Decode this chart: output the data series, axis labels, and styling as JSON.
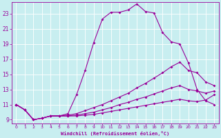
{
  "xlabel": "Windchill (Refroidissement éolien,°C)",
  "bg_color": "#c8eef0",
  "line_color": "#990099",
  "grid_color": "#ffffff",
  "xlim": [
    -0.5,
    23.5
  ],
  "ylim": [
    8.5,
    24.5
  ],
  "xticks": [
    0,
    1,
    2,
    3,
    4,
    5,
    6,
    7,
    8,
    9,
    10,
    11,
    12,
    13,
    14,
    15,
    16,
    17,
    18,
    19,
    20,
    21,
    22,
    23
  ],
  "yticks": [
    9,
    11,
    13,
    15,
    17,
    19,
    21,
    23
  ],
  "line1_x": [
    0,
    1,
    2,
    3,
    4,
    5,
    6,
    7,
    8,
    9,
    10,
    11,
    12,
    13,
    14,
    15,
    16,
    17,
    18,
    19,
    20,
    21,
    22,
    23
  ],
  "line1_y": [
    11.0,
    10.3,
    9.0,
    9.2,
    9.5,
    9.5,
    9.8,
    12.3,
    15.5,
    19.2,
    22.3,
    23.2,
    23.2,
    23.5,
    24.3,
    23.3,
    23.1,
    20.5,
    19.3,
    null,
    null,
    null,
    null,
    null
  ],
  "line1_x_seg2": [
    18,
    19,
    20,
    21,
    22,
    23
  ],
  "line1_y_seg2": [
    19.3,
    null,
    null,
    null,
    null,
    null
  ],
  "main_line_x": [
    0,
    1,
    2,
    3,
    4,
    5,
    6,
    7,
    8,
    9,
    10,
    11,
    12,
    13,
    14,
    15,
    16,
    17,
    18,
    19,
    20,
    21,
    22,
    23
  ],
  "main_line_y": [
    11.0,
    10.3,
    9.0,
    9.2,
    9.5,
    9.5,
    9.8,
    12.3,
    15.5,
    19.2,
    22.3,
    23.2,
    23.2,
    23.5,
    24.3,
    23.3,
    23.1,
    20.5,
    19.3,
    19.0,
    16.5,
    13.0,
    11.5,
    11.0
  ],
  "line2_x": [
    0,
    1,
    2,
    3,
    4,
    5,
    6,
    7,
    8,
    9,
    10,
    11,
    12,
    13,
    14,
    15,
    16,
    17,
    18,
    19,
    20,
    21,
    22,
    23
  ],
  "line2_y": [
    11.0,
    10.3,
    9.0,
    9.2,
    9.5,
    9.5,
    9.6,
    9.8,
    10.2,
    10.6,
    11.0,
    11.5,
    12.0,
    12.5,
    13.2,
    13.8,
    14.5,
    15.2,
    16.0,
    16.6,
    15.5,
    15.2,
    14.0,
    13.5
  ],
  "line3_x": [
    0,
    1,
    2,
    3,
    4,
    5,
    6,
    7,
    8,
    9,
    10,
    11,
    12,
    13,
    14,
    15,
    16,
    17,
    18,
    19,
    20,
    21,
    22,
    23
  ],
  "line3_y": [
    11.0,
    10.3,
    9.0,
    9.2,
    9.5,
    9.5,
    9.5,
    9.6,
    9.8,
    10.0,
    10.3,
    10.6,
    11.0,
    11.3,
    11.7,
    12.0,
    12.4,
    12.8,
    13.2,
    13.5,
    13.0,
    12.8,
    12.5,
    12.8
  ],
  "line4_x": [
    0,
    1,
    2,
    3,
    4,
    5,
    6,
    7,
    8,
    9,
    10,
    11,
    12,
    13,
    14,
    15,
    16,
    17,
    18,
    19,
    20,
    21,
    22,
    23
  ],
  "line4_y": [
    11.0,
    10.3,
    9.0,
    9.2,
    9.5,
    9.5,
    9.5,
    9.5,
    9.6,
    9.7,
    9.9,
    10.1,
    10.3,
    10.5,
    10.7,
    10.9,
    11.1,
    11.3,
    11.5,
    11.7,
    11.5,
    11.4,
    11.6,
    12.3
  ]
}
